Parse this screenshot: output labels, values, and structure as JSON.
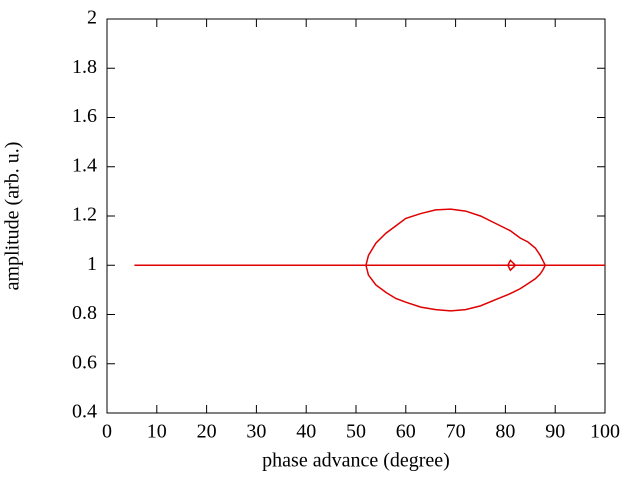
{
  "chart_data": {
    "type": "line",
    "xlabel": "phase advance (degree)",
    "ylabel": "amplitude (arb. u.)",
    "xlim": [
      0,
      100
    ],
    "xticks": [
      0,
      10,
      20,
      30,
      40,
      50,
      60,
      70,
      80,
      90,
      100
    ],
    "ylim": [
      0.4,
      2
    ],
    "yticks": [
      0.4,
      0.6,
      0.8,
      1,
      1.2,
      1.4,
      1.6,
      1.8,
      2
    ],
    "series": [
      {
        "color": "#e00000",
        "x": [
          5.5,
          100,
          null,
          52,
          52.5,
          54,
          56,
          58,
          60,
          63,
          66,
          69,
          72,
          75,
          78,
          81,
          83,
          84.5,
          86,
          87,
          87.5,
          88,
          null,
          52,
          52.5,
          54,
          56,
          58,
          60,
          63,
          66,
          69,
          72,
          75,
          78,
          81,
          83,
          84.5,
          86,
          87,
          87.5,
          88,
          null,
          80.5,
          81,
          82,
          81,
          80.5
        ],
        "values": [
          1,
          1,
          null,
          1,
          1.04,
          1.09,
          1.13,
          1.16,
          1.19,
          1.21,
          1.225,
          1.228,
          1.22,
          1.2,
          1.17,
          1.14,
          1.11,
          1.095,
          1.07,
          1.04,
          1.02,
          1,
          null,
          1,
          0.96,
          0.92,
          0.89,
          0.865,
          0.85,
          0.83,
          0.82,
          0.815,
          0.82,
          0.835,
          0.86,
          0.885,
          0.905,
          0.925,
          0.945,
          0.965,
          0.98,
          1,
          null,
          1,
          1.02,
          1,
          0.98,
          1
        ]
      }
    ]
  }
}
